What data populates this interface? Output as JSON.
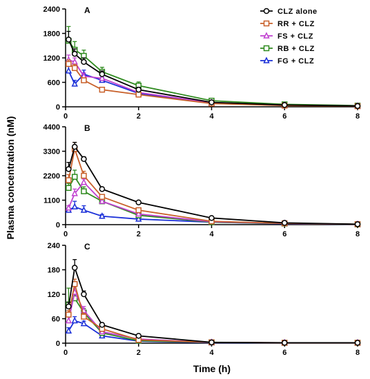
{
  "chart_data": {
    "type": "line",
    "xlabel": "Time (h)",
    "ylabel": "Plasma concentration (nM)",
    "x_ticks": [
      "0",
      "2",
      "4",
      "6",
      "8"
    ],
    "legend": {
      "placement": "top-right",
      "entries": [
        {
          "name": "CLZ alone",
          "color": "#000000",
          "marker": "circle"
        },
        {
          "name": "RR + CLZ",
          "color": "#c8602a",
          "marker": "square"
        },
        {
          "name": "FS + CLZ",
          "color": "#c040d0",
          "marker": "triangle"
        },
        {
          "name": "RB + CLZ",
          "color": "#2e8a1e",
          "marker": "square"
        },
        {
          "name": "FG + CLZ",
          "color": "#1a2fd8",
          "marker": "triangle"
        }
      ]
    },
    "panels": [
      {
        "label": "A",
        "ylim": [
          0,
          2400
        ],
        "yticks": [
          "0",
          "600",
          "1200",
          "1800",
          "2400"
        ],
        "x": [
          0.083,
          0.25,
          0.5,
          1,
          2,
          4,
          6,
          8
        ],
        "series": [
          {
            "name": "CLZ alone",
            "values": [
              1650,
              1300,
              1100,
              800,
              420,
              110,
              45,
              20
            ],
            "errors": [
              200,
              120,
              100,
              80,
              60,
              20,
              10,
              5
            ]
          },
          {
            "name": "RR + CLZ",
            "values": [
              1050,
              950,
              650,
              420,
              300,
              80,
              30,
              15
            ],
            "errors": [
              100,
              90,
              60,
              50,
              40,
              15,
              8,
              5
            ]
          },
          {
            "name": "FS + CLZ",
            "values": [
              1150,
              1100,
              750,
              700,
              350,
              100,
              40,
              20
            ],
            "errors": [
              120,
              100,
              80,
              60,
              50,
              15,
              10,
              5
            ]
          },
          {
            "name": "RB + CLZ",
            "values": [
              1620,
              1400,
              1250,
              860,
              520,
              150,
              60,
              30
            ],
            "errors": [
              350,
              200,
              140,
              110,
              90,
              30,
              15,
              8
            ]
          },
          {
            "name": "FG + CLZ",
            "values": [
              880,
              560,
              800,
              650,
              330,
              90,
              35,
              20
            ],
            "errors": [
              110,
              90,
              100,
              70,
              50,
              15,
              8,
              5
            ]
          }
        ]
      },
      {
        "label": "B",
        "ylim": [
          0,
          4400
        ],
        "yticks": [
          "0",
          "1100",
          "2200",
          "3300",
          "4400"
        ],
        "x": [
          0.083,
          0.25,
          0.5,
          1,
          2,
          4,
          6,
          8
        ],
        "series": [
          {
            "name": "CLZ alone",
            "values": [
              2500,
              3500,
              2950,
              1600,
              1000,
              300,
              80,
              20
            ],
            "errors": [
              300,
              200,
              100,
              80,
              50,
              30,
              15,
              5
            ]
          },
          {
            "name": "RR + CLZ",
            "values": [
              2000,
              3400,
              2200,
              1250,
              650,
              150,
              60,
              20
            ],
            "errors": [
              250,
              300,
              200,
              100,
              70,
              30,
              15,
              5
            ]
          },
          {
            "name": "FS + CLZ",
            "values": [
              750,
              1400,
              1900,
              1050,
              480,
              130,
              55,
              15
            ],
            "errors": [
              100,
              200,
              150,
              100,
              60,
              20,
              10,
              5
            ]
          },
          {
            "name": "RB + CLZ",
            "values": [
              1650,
              2150,
              1500,
              1050,
              420,
              110,
              50,
              15
            ],
            "errors": [
              200,
              300,
              200,
              100,
              50,
              20,
              10,
              5
            ]
          },
          {
            "name": "FG + CLZ",
            "values": [
              650,
              800,
              650,
              380,
              250,
              110,
              40,
              15
            ],
            "errors": [
              100,
              250,
              200,
              80,
              50,
              20,
              10,
              5
            ]
          }
        ]
      },
      {
        "label": "C",
        "ylim": [
          0,
          240
        ],
        "yticks": [
          "0",
          "60",
          "120",
          "180",
          "240"
        ],
        "x": [
          0.083,
          0.25,
          0.5,
          1,
          2,
          4,
          6,
          8
        ],
        "series": [
          {
            "name": "CLZ alone",
            "values": [
              90,
              185,
              120,
              45,
              18,
              2,
              1,
              1
            ],
            "errors": [
              10,
              20,
              8,
              4,
              3,
              1,
              0.5,
              0.5
            ]
          },
          {
            "name": "RR + CLZ",
            "values": [
              70,
              145,
              65,
              35,
              8,
              2,
              1,
              1
            ],
            "errors": [
              10,
              12,
              8,
              4,
              2,
              1,
              0.5,
              0.5
            ]
          },
          {
            "name": "FS + CLZ",
            "values": [
              55,
              125,
              80,
              28,
              10,
              2,
              1,
              1
            ],
            "errors": [
              10,
              15,
              10,
              4,
              2,
              1,
              0.5,
              0.5
            ]
          },
          {
            "name": "RB + CLZ",
            "values": [
              95,
              110,
              75,
              25,
              6,
              2,
              1,
              1
            ],
            "errors": [
              40,
              15,
              10,
              4,
              2,
              1,
              0.5,
              0.5
            ]
          },
          {
            "name": "FG + CLZ",
            "values": [
              30,
              55,
              48,
              18,
              5,
              1,
              1,
              1
            ],
            "errors": [
              8,
              10,
              6,
              3,
              2,
              0.5,
              0.5,
              0.5
            ]
          }
        ]
      }
    ]
  }
}
